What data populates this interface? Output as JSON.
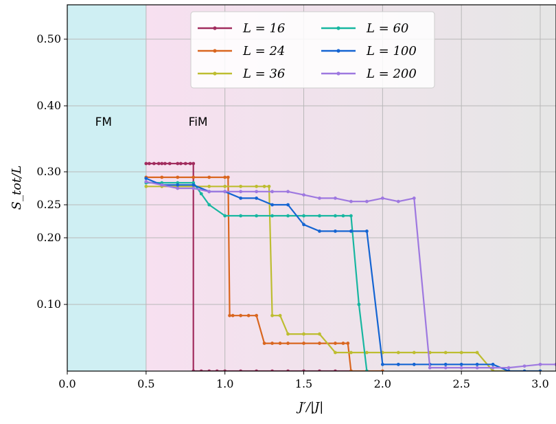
{
  "chart_data": {
    "type": "line",
    "title": "",
    "xlabel": "J′/|J|",
    "ylabel": "S_tot/L",
    "xlim": [
      0.0,
      3.1
    ],
    "ylim": [
      0.0,
      0.55
    ],
    "grid": true,
    "legend_position": "top",
    "x_ticks": [
      0.0,
      0.5,
      1.0,
      1.5,
      2.0,
      2.5,
      3.0
    ],
    "x_tick_labels": [
      "0.0",
      "0.5",
      "1.0",
      "1.5",
      "2.0",
      "2.5",
      "3.0"
    ],
    "y_ticks": [
      0.1,
      0.2,
      0.25,
      0.3,
      0.4,
      0.5
    ],
    "y_tick_labels": [
      "0.10",
      "0.20",
      "0.25",
      "0.30",
      "0.40",
      "0.50"
    ],
    "regions": [
      {
        "label": "FM",
        "x_range": [
          0.0,
          0.5
        ],
        "color": "#cfeff3"
      },
      {
        "label": "FiM",
        "x_range": [
          0.5,
          3.1
        ],
        "color_start": "#f7e0f0",
        "color_end": "#e6e6e6"
      }
    ],
    "series": [
      {
        "name": "L = 16",
        "color": "#a12c5e",
        "x": [
          0.5,
          0.52,
          0.55,
          0.58,
          0.6,
          0.62,
          0.65,
          0.7,
          0.72,
          0.75,
          0.78,
          0.8,
          0.8,
          0.85,
          0.9,
          0.95,
          1.0,
          1.1,
          1.2,
          1.3,
          1.4,
          1.5,
          1.6,
          1.7,
          1.8
        ],
        "y": [
          0.3125,
          0.3125,
          0.3125,
          0.3125,
          0.3125,
          0.3125,
          0.3125,
          0.3125,
          0.3125,
          0.3125,
          0.3125,
          0.3125,
          0.0,
          0.0,
          0.0,
          0.0,
          0.0,
          0.0,
          0.0,
          0.0,
          0.0,
          0.0,
          0.0,
          0.0,
          0.0
        ]
      },
      {
        "name": "L = 24",
        "color": "#d9661f",
        "x": [
          0.5,
          0.6,
          0.7,
          0.8,
          0.9,
          1.0,
          1.02,
          1.03,
          1.05,
          1.1,
          1.15,
          1.2,
          1.25,
          1.3,
          1.35,
          1.4,
          1.5,
          1.6,
          1.7,
          1.75,
          1.78,
          1.8,
          1.9,
          2.0
        ],
        "y": [
          0.2917,
          0.2917,
          0.2917,
          0.2917,
          0.2917,
          0.2917,
          0.2917,
          0.0833,
          0.0833,
          0.0833,
          0.0833,
          0.0833,
          0.0417,
          0.0417,
          0.0417,
          0.0417,
          0.0417,
          0.0417,
          0.0417,
          0.0417,
          0.0417,
          0.0,
          0.0,
          0.0
        ]
      },
      {
        "name": "L = 36",
        "color": "#bdbd30",
        "x": [
          0.5,
          0.6,
          0.7,
          0.8,
          0.9,
          1.0,
          1.1,
          1.2,
          1.25,
          1.28,
          1.3,
          1.35,
          1.4,
          1.5,
          1.6,
          1.7,
          1.8,
          1.9,
          2.0,
          2.1,
          2.2,
          2.3,
          2.4,
          2.5,
          2.6,
          2.7,
          2.8,
          2.9,
          3.0
        ],
        "y": [
          0.2778,
          0.2778,
          0.2778,
          0.2778,
          0.2778,
          0.2778,
          0.2778,
          0.2778,
          0.2778,
          0.2778,
          0.0833,
          0.0833,
          0.0556,
          0.0556,
          0.0556,
          0.0278,
          0.0278,
          0.0278,
          0.0278,
          0.0278,
          0.0278,
          0.0278,
          0.0278,
          0.0278,
          0.0278,
          0.0,
          0.0,
          0.0,
          0.0
        ]
      },
      {
        "name": "L = 60",
        "color": "#17b6a0",
        "x": [
          0.5,
          0.6,
          0.7,
          0.8,
          0.85,
          0.9,
          1.0,
          1.1,
          1.2,
          1.3,
          1.4,
          1.5,
          1.6,
          1.7,
          1.75,
          1.8,
          1.85,
          1.9
        ],
        "y": [
          0.2833,
          0.2833,
          0.2833,
          0.2833,
          0.2667,
          0.25,
          0.2333,
          0.2333,
          0.2333,
          0.2333,
          0.2333,
          0.2333,
          0.2333,
          0.2333,
          0.2333,
          0.2333,
          0.1,
          0.0
        ]
      },
      {
        "name": "L = 100",
        "color": "#1464d2",
        "x": [
          0.5,
          0.6,
          0.7,
          0.8,
          0.9,
          1.0,
          1.1,
          1.2,
          1.3,
          1.4,
          1.5,
          1.6,
          1.7,
          1.8,
          1.9,
          2.0,
          2.1,
          2.2,
          2.3,
          2.4,
          2.5,
          2.6,
          2.7,
          2.8,
          2.9,
          3.0
        ],
        "y": [
          0.29,
          0.28,
          0.28,
          0.28,
          0.27,
          0.27,
          0.26,
          0.26,
          0.25,
          0.25,
          0.22,
          0.21,
          0.21,
          0.21,
          0.21,
          0.01,
          0.01,
          0.01,
          0.01,
          0.01,
          0.01,
          0.01,
          0.01,
          0.0,
          0.0,
          0.0
        ]
      },
      {
        "name": "L = 200",
        "color": "#9e78e0",
        "x": [
          0.5,
          0.6,
          0.7,
          0.8,
          0.9,
          1.0,
          1.1,
          1.2,
          1.3,
          1.4,
          1.5,
          1.6,
          1.7,
          1.8,
          1.9,
          2.0,
          2.1,
          2.2,
          2.3,
          2.4,
          2.5,
          2.6,
          2.7,
          2.8,
          2.9,
          3.0,
          3.1
        ],
        "y": [
          0.285,
          0.28,
          0.275,
          0.275,
          0.27,
          0.27,
          0.27,
          0.27,
          0.27,
          0.27,
          0.265,
          0.26,
          0.26,
          0.255,
          0.255,
          0.26,
          0.255,
          0.26,
          0.005,
          0.005,
          0.005,
          0.005,
          0.005,
          0.005,
          0.0075,
          0.01,
          0.01
        ]
      }
    ]
  }
}
